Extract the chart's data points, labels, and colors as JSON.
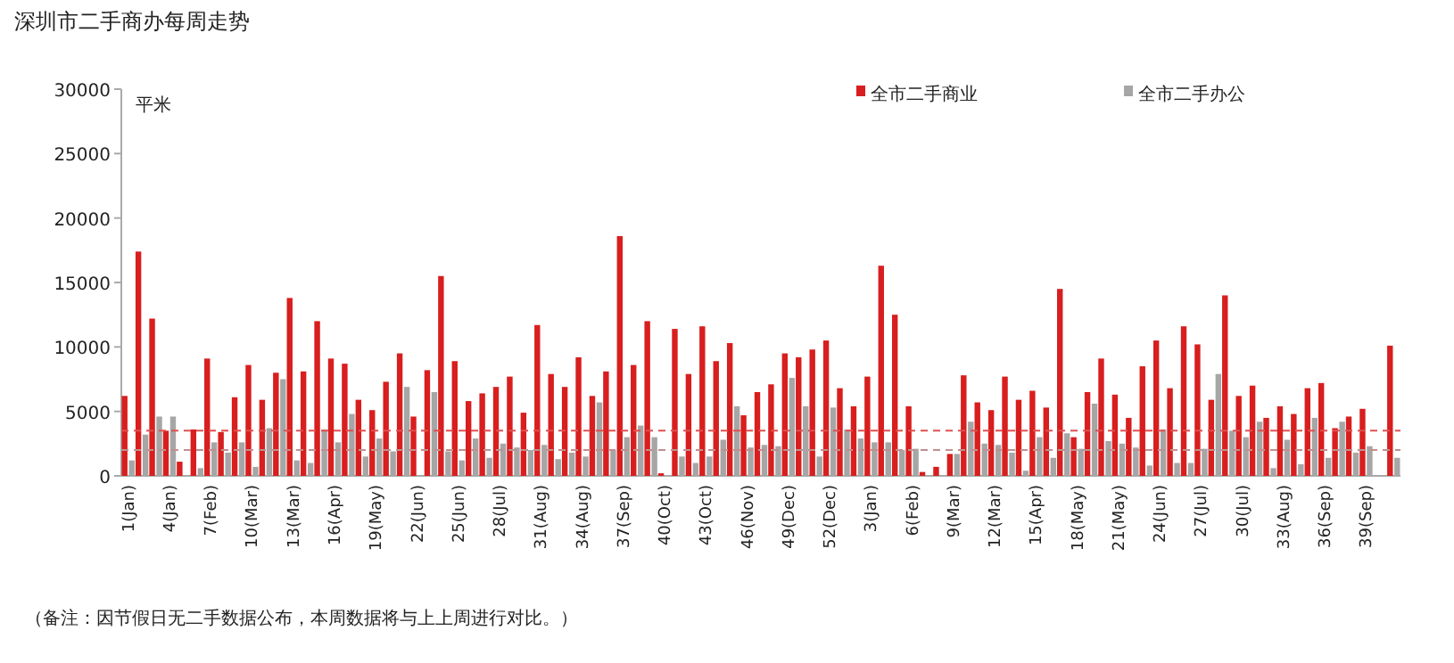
{
  "chart_data": {
    "type": "bar",
    "title": "深圳市二手商办每周走势",
    "ylabel": "平米",
    "annotations": [
      "（备注：因节假日无二手数据公布，本周数据将与上上周进行对比。）"
    ],
    "categories": [
      "1(Jan)",
      null,
      null,
      "4(Jan)",
      null,
      null,
      "7(Feb)",
      null,
      null,
      "10(Mar)",
      null,
      null,
      "13(Mar)",
      null,
      null,
      "16(Apr)",
      null,
      null,
      "19(May)",
      null,
      null,
      "22(Jun)",
      null,
      null,
      "25(Jun)",
      null,
      null,
      "28(Jul)",
      null,
      null,
      "31(Aug)",
      null,
      null,
      "34(Aug)",
      null,
      null,
      "37(Sep)",
      null,
      null,
      "40(Oct)",
      null,
      null,
      "43(Oct)",
      null,
      null,
      "46(Nov)",
      null,
      null,
      "49(Dec)",
      null,
      null,
      "52(Dec)",
      null,
      null,
      "3(Jan)",
      null,
      null,
      "6(Feb)",
      null,
      null,
      "9(Mar)",
      null,
      null,
      "12(Mar)",
      null,
      null,
      "15(Apr)",
      null,
      null,
      "18(May)",
      null,
      null,
      "21(May)",
      null,
      null,
      "24(Jun)",
      null,
      null,
      "27(Jul)",
      null,
      null,
      "30(Jul)",
      null,
      null,
      "33(Aug)",
      null,
      null,
      "36(Sep)",
      null,
      null,
      "39(Sep)",
      null,
      null
    ],
    "series": [
      {
        "name": "全市二手商业",
        "color": "#d81e1e",
        "values": [
          6200,
          17400,
          12200,
          3500,
          1100,
          3600,
          9100,
          3400,
          6100,
          8600,
          5900,
          8000,
          13800,
          8100,
          12000,
          9100,
          8700,
          5900,
          5100,
          7300,
          9500,
          4600,
          8200,
          15500,
          8900,
          5800,
          6400,
          6900,
          7700,
          4900,
          11700,
          7900,
          6900,
          9200,
          6200,
          8100,
          18600,
          8600,
          12000,
          200,
          11400,
          7900,
          11600,
          8900,
          10300,
          4700,
          6500,
          7100,
          9500,
          9200,
          9800,
          10500,
          6800,
          5400,
          7700,
          16300,
          12500,
          5400,
          300,
          700,
          1700,
          7800,
          5700,
          5100,
          7700,
          5900,
          6600,
          5300,
          14500,
          3000,
          6500,
          9100,
          6300,
          4500,
          8500,
          10500,
          6800,
          11600,
          10200,
          5900,
          14000,
          6200,
          7000,
          4500,
          5400,
          4800,
          6800,
          7200,
          3700,
          4600,
          5200,
          null,
          10100
        ]
      },
      {
        "name": "全市二手办公",
        "color": "#a6a6a6",
        "values": [
          1200,
          3200,
          4600,
          4600,
          0,
          600,
          2600,
          1800,
          2600,
          700,
          3700,
          7500,
          1200,
          1000,
          3600,
          2600,
          4800,
          1500,
          2900,
          1900,
          6900,
          0,
          6500,
          1900,
          1200,
          2900,
          1400,
          2500,
          2200,
          2000,
          2400,
          1300,
          1800,
          1500,
          5700,
          2000,
          3000,
          3900,
          3000,
          null,
          1500,
          1000,
          1500,
          2800,
          5400,
          2200,
          2400,
          2300,
          7600,
          5400,
          1500,
          5300,
          3600,
          2900,
          2600,
          2600,
          2000,
          2100,
          null,
          null,
          1700,
          4200,
          2500,
          2400,
          1800,
          400,
          3000,
          1400,
          3300,
          2100,
          5600,
          2700,
          2500,
          2200,
          800,
          3600,
          1000,
          1000,
          2100,
          7900,
          3500,
          3000,
          4200,
          600,
          2800,
          900,
          4500,
          1400,
          4200,
          1800,
          2300,
          null,
          1400
        ]
      }
    ],
    "ylim": [
      0,
      30000
    ],
    "yticks": [
      0,
      5000,
      10000,
      15000,
      20000,
      25000,
      30000
    ],
    "ref_lines": [
      {
        "axis": "y",
        "value": 3500,
        "color": "#e05050",
        "line_style": "dashed"
      },
      {
        "axis": "y",
        "value": 2000,
        "color": "#c09090",
        "line_style": "dashed"
      }
    ],
    "legend": "top right",
    "grid": false
  }
}
